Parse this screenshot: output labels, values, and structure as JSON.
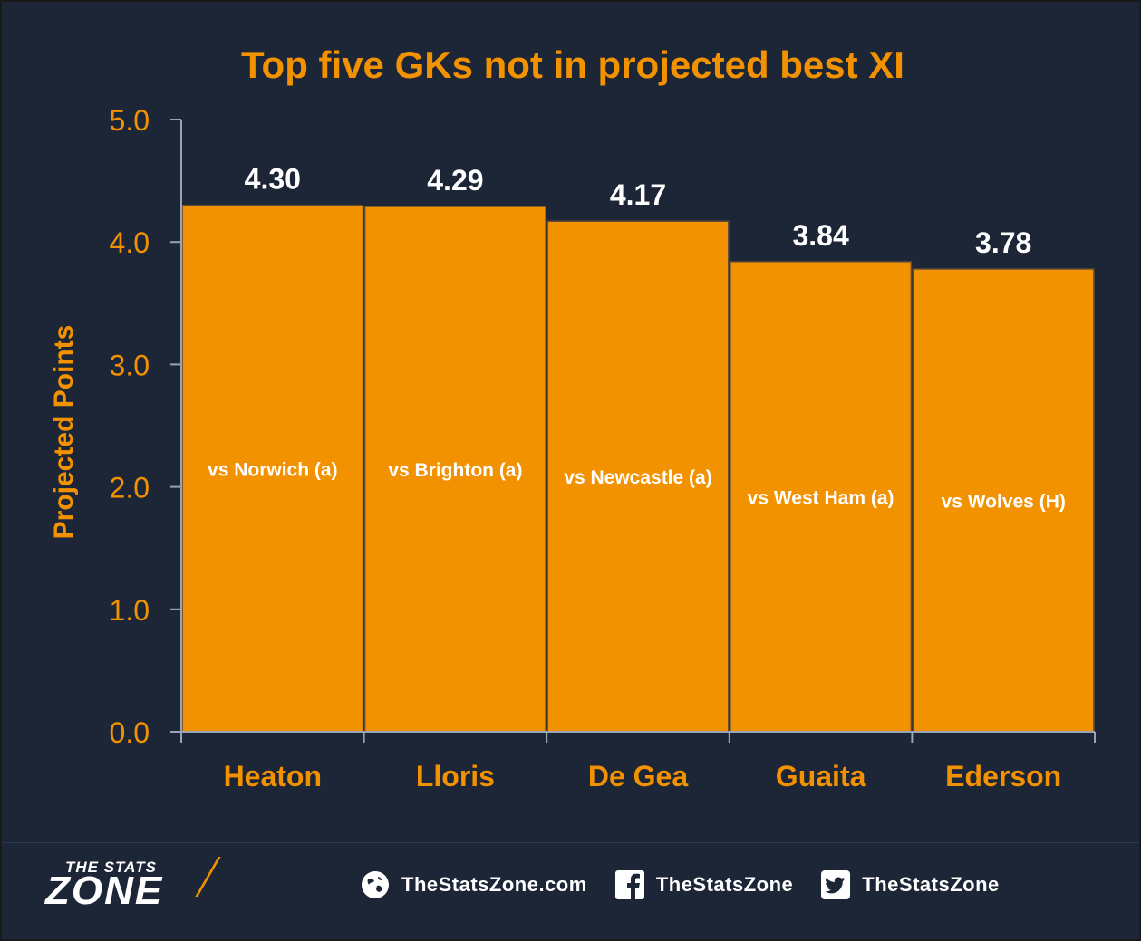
{
  "chart_data": {
    "type": "bar",
    "title": "Top five GKs not in projected best XI",
    "ylabel": "Projected Points",
    "xlabel": "",
    "ylim": [
      0,
      5
    ],
    "yticks": [
      "0.0",
      "1.0",
      "2.0",
      "3.0",
      "4.0",
      "5.0"
    ],
    "categories": [
      "Heaton",
      "Lloris",
      "De Gea",
      "Guaita",
      "Ederson"
    ],
    "values": [
      4.3,
      4.29,
      4.17,
      3.84,
      3.78
    ],
    "value_labels": [
      "4.30",
      "4.29",
      "4.17",
      "3.84",
      "3.78"
    ],
    "bar_annotations": [
      "vs Norwich (a)",
      "vs Brighton (a)",
      "vs Newcastle (a)",
      "vs West Ham (a)",
      "vs Wolves (H)"
    ],
    "grid": false,
    "legend": "none",
    "colors": {
      "background": "#1d2637",
      "bar": "#f39200",
      "bar_border": "#5a4a3a",
      "accent": "#f39200",
      "value_label": "#ffffff",
      "annotation": "#ffffff",
      "axis": "#9aa3b2"
    }
  },
  "footer": {
    "logo_small": "THE STATS",
    "logo_big": "ZONE",
    "socials": [
      {
        "icon": "globe-icon",
        "label": "TheStatsZone.com"
      },
      {
        "icon": "facebook-icon",
        "label": "TheStatsZone"
      },
      {
        "icon": "twitter-icon",
        "label": "TheStatsZone"
      }
    ]
  }
}
